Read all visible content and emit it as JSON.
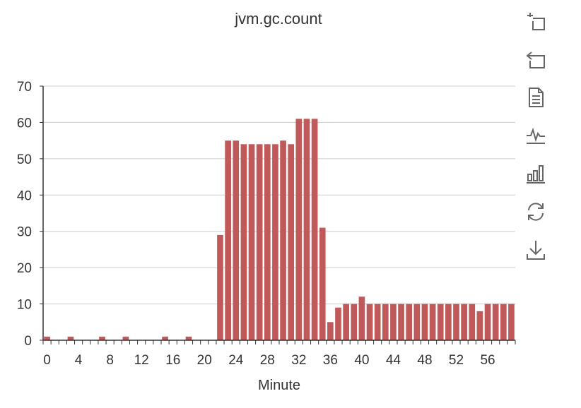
{
  "chart_data": {
    "type": "bar",
    "title": "jvm.gc.count",
    "xlabel": "Minute",
    "ylabel": "",
    "ylim": [
      0,
      70
    ],
    "yticks": [
      0,
      10,
      20,
      30,
      40,
      50,
      60,
      70
    ],
    "xtick_labels": [
      "0",
      "4",
      "8",
      "12",
      "16",
      "20",
      "24",
      "28",
      "32",
      "36",
      "40",
      "44",
      "48",
      "52",
      "56"
    ],
    "categories": [
      0,
      1,
      2,
      3,
      4,
      5,
      6,
      7,
      8,
      9,
      10,
      11,
      12,
      13,
      14,
      15,
      16,
      17,
      18,
      19,
      20,
      21,
      22,
      23,
      24,
      25,
      26,
      27,
      28,
      29,
      30,
      31,
      32,
      33,
      34,
      35,
      36,
      37,
      38,
      39,
      40,
      41,
      42,
      43,
      44,
      45,
      46,
      47,
      48,
      49,
      50,
      51,
      52,
      53,
      54,
      55,
      56,
      57,
      58,
      59
    ],
    "values": [
      1,
      0,
      0,
      1,
      0,
      0,
      0,
      1,
      0,
      0,
      1,
      0,
      0,
      0,
      0,
      1,
      0,
      0,
      1,
      0,
      0,
      0,
      29,
      55,
      55,
      54,
      54,
      54,
      54,
      54,
      55,
      54,
      61,
      61,
      61,
      31,
      5,
      9,
      10,
      10,
      12,
      10,
      10,
      10,
      10,
      10,
      10,
      10,
      10,
      10,
      10,
      10,
      10,
      10,
      10,
      8,
      10,
      10,
      10,
      10
    ],
    "grid": true,
    "bar_color": "#c05a5a"
  },
  "toolbox": {
    "items": [
      "zoom-icon",
      "zoom-reset-icon",
      "data-view-icon",
      "line-chart-icon",
      "bar-chart-icon",
      "restore-icon",
      "download-icon"
    ]
  }
}
